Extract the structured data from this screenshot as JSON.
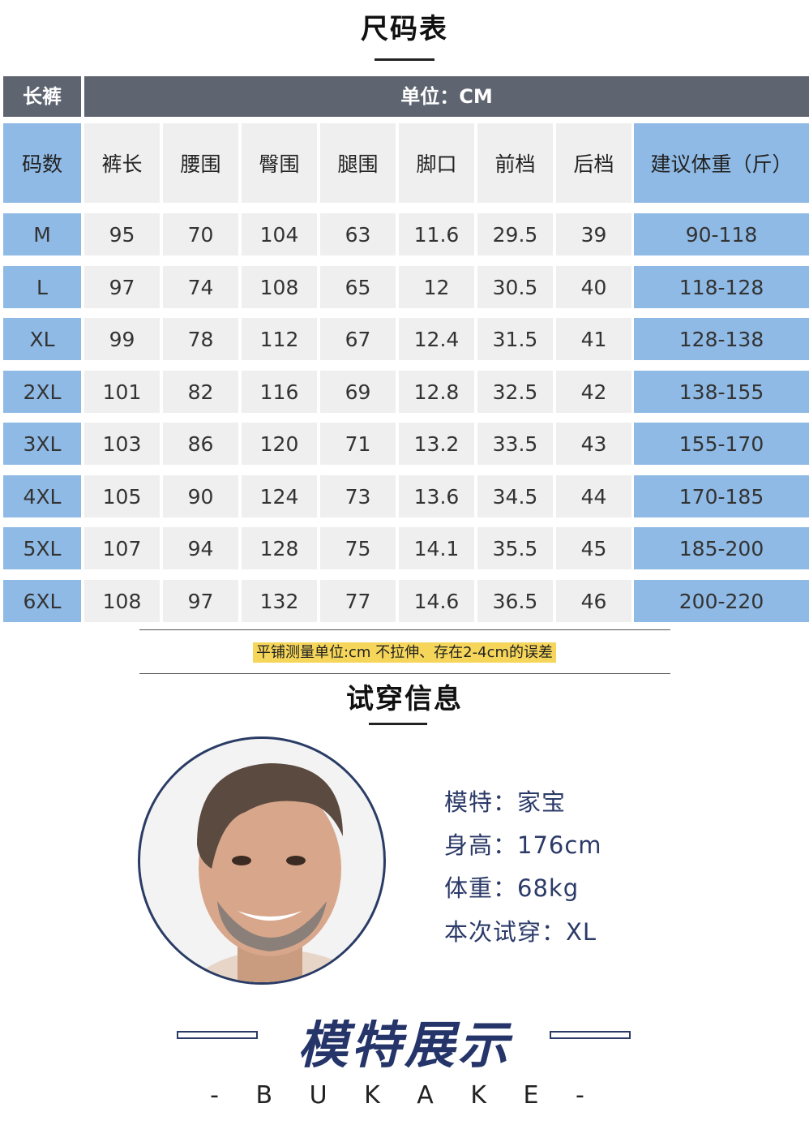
{
  "page_title": "尺码表",
  "table": {
    "top_left": "长裤",
    "unit": "单位：CM",
    "headers": [
      "码数",
      "裤长",
      "腰围",
      "臀围",
      "腿围",
      "脚口",
      "前档",
      "后档",
      "建议体重（斤）"
    ],
    "rows": [
      [
        "M",
        "95",
        "70",
        "104",
        "63",
        "11.6",
        "29.5",
        "39",
        "90-118"
      ],
      [
        "L",
        "97",
        "74",
        "108",
        "65",
        "12",
        "30.5",
        "40",
        "118-128"
      ],
      [
        "XL",
        "99",
        "78",
        "112",
        "67",
        "12.4",
        "31.5",
        "41",
        "128-138"
      ],
      [
        "2XL",
        "101",
        "82",
        "116",
        "69",
        "12.8",
        "32.5",
        "42",
        "138-155"
      ],
      [
        "3XL",
        "103",
        "86",
        "120",
        "71",
        "13.2",
        "33.5",
        "43",
        "155-170"
      ],
      [
        "4XL",
        "105",
        "90",
        "124",
        "73",
        "13.6",
        "34.5",
        "44",
        "170-185"
      ],
      [
        "5XL",
        "107",
        "94",
        "128",
        "75",
        "14.1",
        "35.5",
        "45",
        "185-200"
      ],
      [
        "6XL",
        "108",
        "97",
        "132",
        "77",
        "14.6",
        "36.5",
        "46",
        "200-220"
      ]
    ]
  },
  "note": "平铺测量单位:cm 不拉伸、存在2-4cm的误差",
  "section2_title": "试穿信息",
  "model": {
    "name": "模特：家宝",
    "height": "身高：176cm",
    "weight": "体重：68kg",
    "size": "本次试穿：XL"
  },
  "show_title": "模特展示",
  "brand": "- B U K A K E -",
  "colors": {
    "header_bar": "#5e6470",
    "blue_cell": "#8fbae5",
    "grey_cell": "#efefef",
    "highlight": "#f6d65a",
    "navy": "#25356a"
  }
}
